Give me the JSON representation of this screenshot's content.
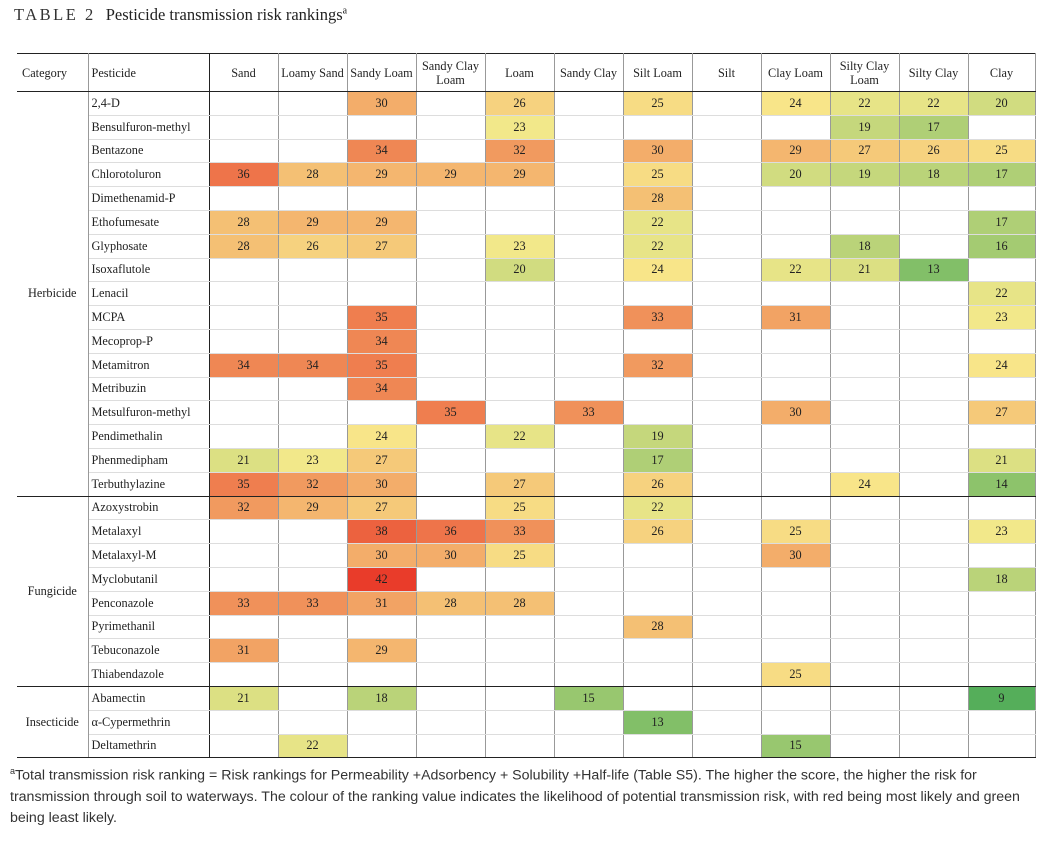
{
  "table_label": "TABLE 2",
  "table_title": "Pesticide transmission risk rankings",
  "title_footnote_mark": "a",
  "columns": [
    "Category",
    "Pesticide",
    "Sand",
    "Loamy Sand",
    "Sandy Loam",
    "Sandy Clay Loam",
    "Loam",
    "Sandy Clay",
    "Silt Loam",
    "Silt",
    "Clay Loam",
    "Silty Clay Loam",
    "Silty Clay",
    "Clay"
  ],
  "groups": [
    {
      "category": "Herbicide",
      "rows": [
        {
          "pesticide": "2,4-D",
          "values": [
            null,
            null,
            30,
            null,
            26,
            null,
            25,
            null,
            24,
            22,
            22,
            20
          ]
        },
        {
          "pesticide": "Bensulfuron-methyl",
          "values": [
            null,
            null,
            null,
            null,
            23,
            null,
            null,
            null,
            null,
            19,
            17,
            null
          ]
        },
        {
          "pesticide": "Bentazone",
          "values": [
            null,
            null,
            34,
            null,
            32,
            null,
            30,
            null,
            29,
            27,
            26,
            25
          ]
        },
        {
          "pesticide": "Chlorotoluron",
          "values": [
            36,
            28,
            29,
            29,
            29,
            null,
            25,
            null,
            20,
            19,
            18,
            17
          ]
        },
        {
          "pesticide": "Dimethenamid-P",
          "values": [
            null,
            null,
            null,
            null,
            null,
            null,
            28,
            null,
            null,
            null,
            null,
            null
          ]
        },
        {
          "pesticide": "Ethofumesate",
          "values": [
            28,
            29,
            29,
            null,
            null,
            null,
            22,
            null,
            null,
            null,
            null,
            17
          ]
        },
        {
          "pesticide": "Glyphosate",
          "values": [
            28,
            26,
            27,
            null,
            23,
            null,
            22,
            null,
            null,
            18,
            null,
            16
          ]
        },
        {
          "pesticide": "Isoxaflutole",
          "values": [
            null,
            null,
            null,
            null,
            20,
            null,
            24,
            null,
            22,
            21,
            13,
            null
          ]
        },
        {
          "pesticide": "Lenacil",
          "values": [
            null,
            null,
            null,
            null,
            null,
            null,
            null,
            null,
            null,
            null,
            null,
            22
          ]
        },
        {
          "pesticide": "MCPA",
          "values": [
            null,
            null,
            35,
            null,
            null,
            null,
            33,
            null,
            31,
            null,
            null,
            23
          ]
        },
        {
          "pesticide": "Mecoprop-P",
          "values": [
            null,
            null,
            34,
            null,
            null,
            null,
            null,
            null,
            null,
            null,
            null,
            null
          ]
        },
        {
          "pesticide": "Metamitron",
          "values": [
            34,
            34,
            35,
            null,
            null,
            null,
            32,
            null,
            null,
            null,
            null,
            24
          ]
        },
        {
          "pesticide": "Metribuzin",
          "values": [
            null,
            null,
            34,
            null,
            null,
            null,
            null,
            null,
            null,
            null,
            null,
            null
          ]
        },
        {
          "pesticide": "Metsulfuron-methyl",
          "values": [
            null,
            null,
            null,
            35,
            null,
            33,
            null,
            null,
            30,
            null,
            null,
            27
          ]
        },
        {
          "pesticide": "Pendimethalin",
          "values": [
            null,
            null,
            24,
            null,
            22,
            null,
            19,
            null,
            null,
            null,
            null,
            null
          ]
        },
        {
          "pesticide": "Phenmedipham",
          "values": [
            21,
            23,
            27,
            null,
            null,
            null,
            17,
            null,
            null,
            null,
            null,
            21
          ]
        },
        {
          "pesticide": "Terbuthylazine",
          "values": [
            35,
            32,
            30,
            null,
            27,
            null,
            26,
            null,
            null,
            24,
            null,
            14
          ]
        }
      ]
    },
    {
      "category": "Fungicide",
      "rows": [
        {
          "pesticide": "Azoxystrobin",
          "values": [
            32,
            29,
            27,
            null,
            25,
            null,
            22,
            null,
            null,
            null,
            null,
            null
          ]
        },
        {
          "pesticide": "Metalaxyl",
          "values": [
            null,
            null,
            38,
            36,
            33,
            null,
            26,
            null,
            25,
            null,
            null,
            23
          ]
        },
        {
          "pesticide": "Metalaxyl-M",
          "values": [
            null,
            null,
            30,
            30,
            25,
            null,
            null,
            null,
            30,
            null,
            null,
            null
          ]
        },
        {
          "pesticide": "Myclobutanil",
          "values": [
            null,
            null,
            42,
            null,
            null,
            null,
            null,
            null,
            null,
            null,
            null,
            18
          ]
        },
        {
          "pesticide": "Penconazole",
          "values": [
            33,
            33,
            31,
            28,
            28,
            null,
            null,
            null,
            null,
            null,
            null,
            null
          ]
        },
        {
          "pesticide": "Pyrimethanil",
          "values": [
            null,
            null,
            null,
            null,
            null,
            null,
            28,
            null,
            null,
            null,
            null,
            null
          ]
        },
        {
          "pesticide": "Tebuconazole",
          "values": [
            31,
            null,
            29,
            null,
            null,
            null,
            null,
            null,
            null,
            null,
            null,
            null
          ]
        },
        {
          "pesticide": "Thiabendazole",
          "values": [
            null,
            null,
            null,
            null,
            null,
            null,
            null,
            null,
            25,
            null,
            null,
            null
          ]
        }
      ]
    },
    {
      "category": "Insecticide",
      "rows": [
        {
          "pesticide": "Abamectin",
          "values": [
            21,
            null,
            18,
            null,
            null,
            15,
            null,
            null,
            null,
            null,
            null,
            9
          ]
        },
        {
          "pesticide": "α-Cypermethrin",
          "values": [
            null,
            null,
            null,
            null,
            null,
            null,
            13,
            null,
            null,
            null,
            null,
            null
          ]
        },
        {
          "pesticide": "Deltamethrin",
          "values": [
            null,
            22,
            null,
            null,
            null,
            null,
            null,
            null,
            15,
            null,
            null,
            null
          ]
        }
      ]
    }
  ],
  "color_scale": {
    "low": "#55ae5a",
    "mid": "#f8ea8c",
    "high": "#e93c2a",
    "min_value": 9,
    "max_value": 42
  },
  "footnote": {
    "mark": "a",
    "text": "Total transmission risk ranking = Risk rankings for Permeability +Adsorbency + Solubility +Half-life (Table S5). The higher the score, the higher the risk for transmission through soil to waterways. The colour of the ranking value indicates the likelihood of potential transmission risk, with red being most likely and green being least likely."
  }
}
